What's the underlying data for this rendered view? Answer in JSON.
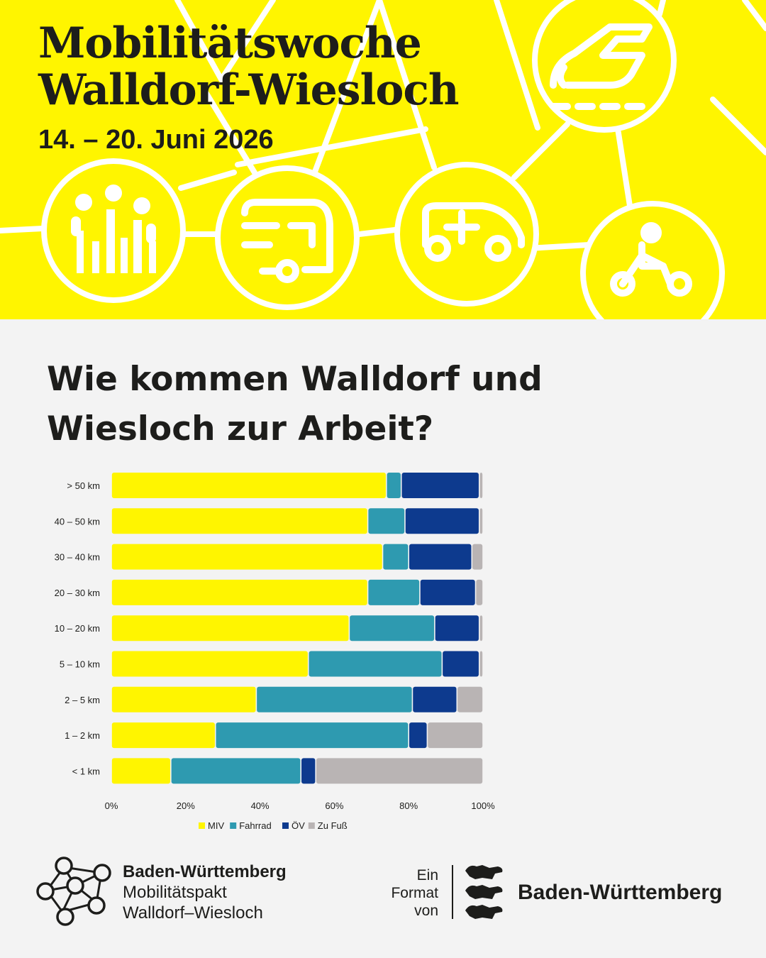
{
  "header": {
    "title_line1": "Mobilitätswoche",
    "title_line2": "Walldorf-Wiesloch",
    "date": "14. – 20. Juni 2026",
    "icons": [
      "people-icon",
      "bus-icon",
      "car-icon",
      "train-icon",
      "bicycle-icon"
    ]
  },
  "question": {
    "line1": "Wie kommen Walldorf und",
    "line2": "Wiesloch zur Arbeit?"
  },
  "colors": {
    "header_bg": "#fff500",
    "MIV": "#fff500",
    "Fahrrad": "#2e9ab0",
    "OEV": "#0d3a8e",
    "ZuFuss": "#b9b4b4"
  },
  "chart_data": {
    "type": "bar",
    "orientation": "horizontal",
    "stacked": true,
    "categories": [
      "> 50 km",
      "40 – 50 km",
      "30 – 40 km",
      "20 – 30 km",
      "10 – 20 km",
      "5 – 10 km",
      "2 – 5 km",
      "1 – 2 km",
      "< 1 km"
    ],
    "series": [
      {
        "name": "MIV",
        "values": [
          74,
          69,
          73,
          69,
          64,
          53,
          39,
          28,
          16
        ]
      },
      {
        "name": "Fahrrad",
        "values": [
          4,
          10,
          7,
          14,
          23,
          36,
          42,
          52,
          35
        ]
      },
      {
        "name": "ÖV",
        "values": [
          21,
          20,
          17,
          15,
          12,
          10,
          12,
          5,
          4
        ]
      },
      {
        "name": "Zu Fuß",
        "values": [
          1,
          1,
          3,
          2,
          1,
          1,
          7,
          15,
          45
        ]
      }
    ],
    "x_ticks": [
      "0%",
      "20%",
      "40%",
      "60%",
      "80%",
      "100%"
    ],
    "xlim": [
      0,
      100
    ],
    "legend_position": "bottom",
    "grid": false
  },
  "footer": {
    "left_line1": "Baden-Württemberg",
    "left_line2": "Mobilitätspakt",
    "left_line3": "Walldorf–Wiesloch",
    "right_small1": "Ein",
    "right_small2": "Format",
    "right_small3": "von",
    "right_brand": "Baden-Württemberg"
  }
}
